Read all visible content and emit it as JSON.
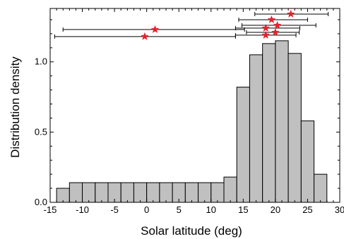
{
  "chart_data": {
    "type": "bar",
    "xlabel": "Solar latitude (deg)",
    "ylabel": "Distribution density",
    "xlim": [
      -15,
      30
    ],
    "ylim": [
      0,
      1.38
    ],
    "x_ticks": [
      "-15",
      "-10",
      "-5",
      "0",
      "5",
      "10",
      "15",
      "20",
      "25",
      "30"
    ],
    "y_ticks": [
      "0.0",
      "0.5",
      "1.0"
    ],
    "bin_width": 2,
    "bins": [
      {
        "x0": -14,
        "x1": -12,
        "value": 0.1
      },
      {
        "x0": -12,
        "x1": -10,
        "value": 0.14
      },
      {
        "x0": -10,
        "x1": -8,
        "value": 0.14
      },
      {
        "x0": -8,
        "x1": -6,
        "value": 0.14
      },
      {
        "x0": -6,
        "x1": -4,
        "value": 0.14
      },
      {
        "x0": -4,
        "x1": -2,
        "value": 0.14
      },
      {
        "x0": -2,
        "x1": 0,
        "value": 0.14
      },
      {
        "x0": 0,
        "x1": 2,
        "value": 0.14
      },
      {
        "x0": 2,
        "x1": 4,
        "value": 0.14
      },
      {
        "x0": 4,
        "x1": 6,
        "value": 0.14
      },
      {
        "x0": 6,
        "x1": 8,
        "value": 0.14
      },
      {
        "x0": 8,
        "x1": 10,
        "value": 0.14
      },
      {
        "x0": 10,
        "x1": 12,
        "value": 0.14
      },
      {
        "x0": 12,
        "x1": 14,
        "value": 0.18
      },
      {
        "x0": 14,
        "x1": 16,
        "value": 0.82
      },
      {
        "x0": 16,
        "x1": 18,
        "value": 1.05
      },
      {
        "x0": 18,
        "x1": 20,
        "value": 1.13
      },
      {
        "x0": 20,
        "x1": 22,
        "value": 1.15
      },
      {
        "x0": 22,
        "x1": 24,
        "value": 1.06
      },
      {
        "x0": 24,
        "x1": 26,
        "value": 0.58
      },
      {
        "x0": 26,
        "x1": 28,
        "value": 0.2
      }
    ],
    "points": [
      {
        "x": 22.4,
        "y": 1.34,
        "xmin": 16.8,
        "xmax": 28.2
      },
      {
        "x": 19.4,
        "y": 1.3,
        "xmin": 14.3,
        "xmax": 25.0
      },
      {
        "x": 20.3,
        "y": 1.26,
        "xmin": 14.8,
        "xmax": 26.3
      },
      {
        "x": 18.5,
        "y": 1.24,
        "xmin": 13.8,
        "xmax": 23.8
      },
      {
        "x": 1.3,
        "y": 1.23,
        "xmin": -13.0,
        "xmax": 15.2
      },
      {
        "x": 20.0,
        "y": 1.21,
        "xmin": 15.5,
        "xmax": 23.7
      },
      {
        "x": 18.5,
        "y": 1.19,
        "xmin": 13.8,
        "xmax": 23.2
      },
      {
        "x": -0.3,
        "y": 1.18,
        "xmin": -14.3,
        "xmax": 13.8
      }
    ],
    "colors": {
      "bar_fill": "#c0c0c0",
      "bar_stroke": "#000000",
      "marker": "#e8202a",
      "axis": "#000000"
    },
    "grid": false
  }
}
